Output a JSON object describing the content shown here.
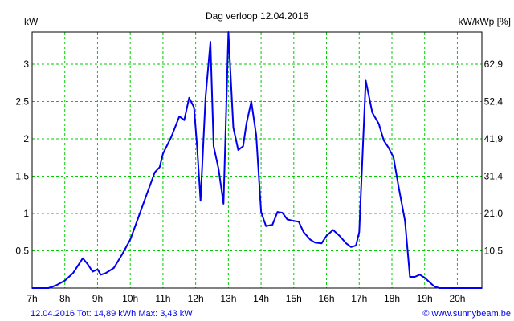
{
  "chart_data": {
    "type": "line",
    "title": "Dag  verloop 12.04.2016",
    "ylabel_left": "kW",
    "ylabel_right": "kW/kWp [%]",
    "x_ticks": [
      "7h",
      "8h",
      "9h",
      "10h",
      "11h",
      "12h",
      "13h",
      "14h",
      "15h",
      "16h",
      "17h",
      "18h",
      "19h",
      "20h"
    ],
    "x_tick_hours": [
      7,
      8,
      9,
      10,
      11,
      12,
      13,
      14,
      15,
      16,
      17,
      18,
      19,
      20
    ],
    "xlim": [
      7,
      20.75
    ],
    "y_ticks_left": [
      "0.5",
      "1",
      "1.5",
      "2",
      "2.5",
      "3"
    ],
    "y_tick_values": [
      0.5,
      1,
      1.5,
      2,
      2.5,
      3
    ],
    "y_ticks_right": [
      "10,5",
      "21,0",
      "31,4",
      "41,9",
      "52,4",
      "62,9"
    ],
    "ylim": [
      0,
      3.43
    ],
    "grid": true,
    "colors": {
      "line": "#0000ee",
      "grid": "#00cc00",
      "border": "#000000",
      "background": "#ffffff"
    },
    "series": [
      {
        "x": [
          7.0,
          7.25,
          7.5,
          7.75,
          8.0,
          8.25,
          8.4,
          8.55,
          8.7,
          8.85,
          9.0,
          9.1,
          9.25,
          9.5,
          9.75,
          10.0,
          10.25,
          10.5,
          10.75,
          10.9,
          11.0,
          11.25,
          11.5,
          11.65,
          11.8,
          11.95,
          12.05,
          12.15,
          12.3,
          12.45,
          12.55,
          12.7,
          12.85,
          13.0,
          13.15,
          13.3,
          13.45,
          13.55,
          13.7,
          13.85,
          14.0,
          14.15,
          14.35,
          14.5,
          14.65,
          14.8,
          15.0,
          15.15,
          15.3,
          15.5,
          15.65,
          15.85,
          16.0,
          16.2,
          16.4,
          16.6,
          16.75,
          16.9,
          17.0,
          17.2,
          17.4,
          17.6,
          17.75,
          17.9,
          18.05,
          18.2,
          18.4,
          18.55,
          18.7,
          18.85,
          19.0,
          19.15,
          19.3,
          19.45,
          19.55,
          19.7,
          19.85,
          20.0,
          20.2,
          20.4,
          20.6,
          20.75
        ],
        "values": [
          0.0,
          0.0,
          0.0,
          0.04,
          0.1,
          0.2,
          0.3,
          0.4,
          0.32,
          0.22,
          0.25,
          0.18,
          0.2,
          0.27,
          0.45,
          0.65,
          0.95,
          1.25,
          1.55,
          1.62,
          1.8,
          2.02,
          2.3,
          2.25,
          2.55,
          2.42,
          1.85,
          1.17,
          2.55,
          3.3,
          1.9,
          1.6,
          1.13,
          3.43,
          2.15,
          1.85,
          1.9,
          2.2,
          2.5,
          2.05,
          1.02,
          0.83,
          0.85,
          1.02,
          1.01,
          0.92,
          0.9,
          0.89,
          0.75,
          0.65,
          0.61,
          0.6,
          0.7,
          0.78,
          0.7,
          0.6,
          0.55,
          0.57,
          0.75,
          2.78,
          2.35,
          2.2,
          1.98,
          1.88,
          1.75,
          1.37,
          0.9,
          0.15,
          0.15,
          0.18,
          0.14,
          0.08,
          0.02,
          0.0,
          0.0,
          0.0,
          0.0,
          0.0,
          0.0,
          0.0,
          0.0,
          0.0
        ]
      }
    ],
    "footer_left": "12.04.2016 Tot: 14,89 kWh Max: 3,43 kW",
    "footer_right": "© www.sunnybeam.be"
  }
}
